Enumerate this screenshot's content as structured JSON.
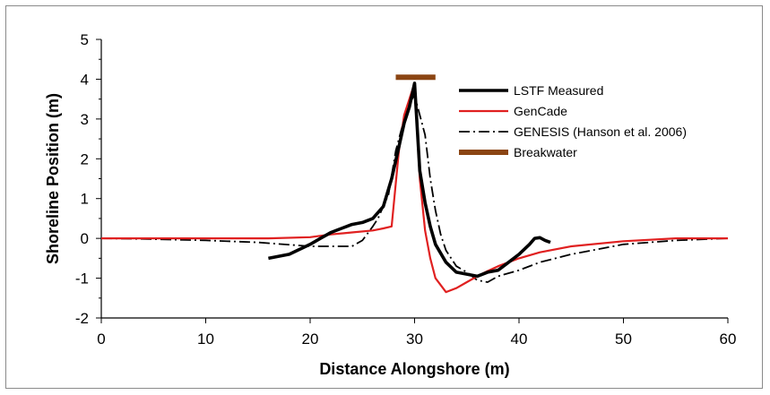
{
  "chart_data": {
    "type": "line",
    "xlabel": "Distance Alongshore (m)",
    "ylabel": "Shoreline Position (m)",
    "xlim": [
      0,
      60
    ],
    "ylim": [
      -2,
      5
    ],
    "xticks": [
      0,
      10,
      20,
      30,
      40,
      50,
      60
    ],
    "yticks": [
      -2,
      -1,
      0,
      1,
      2,
      3,
      4,
      5
    ],
    "grid": false,
    "legend_position": "top-right",
    "series": [
      {
        "name": "LSTF Measured",
        "color": "#000000",
        "style": "solid-thick",
        "x": [
          16,
          18,
          20,
          21,
          22,
          23,
          24,
          25,
          26,
          27,
          27.8,
          28.5,
          29,
          29.5,
          30,
          30.5,
          31,
          31.5,
          32,
          33,
          34,
          35,
          36,
          37,
          38,
          39,
          40,
          41,
          41.5,
          42,
          42.5,
          43
        ],
        "y": [
          -0.5,
          -0.4,
          -0.15,
          0,
          0.15,
          0.25,
          0.35,
          0.4,
          0.5,
          0.8,
          1.5,
          2.3,
          2.9,
          3.3,
          3.9,
          1.7,
          0.9,
          0.3,
          -0.15,
          -0.6,
          -0.85,
          -0.9,
          -0.95,
          -0.85,
          -0.8,
          -0.6,
          -0.4,
          -0.15,
          0,
          0.02,
          -0.05,
          -0.1
        ]
      },
      {
        "name": "GenCade",
        "color": "#e02020",
        "style": "solid",
        "x": [
          0,
          10,
          16,
          20,
          22,
          24,
          26,
          27,
          27.8,
          28.5,
          29,
          29.5,
          30,
          30.5,
          31,
          31.5,
          32,
          33,
          34,
          35,
          36,
          37,
          38,
          40,
          42,
          45,
          50,
          55,
          60
        ],
        "y": [
          0,
          0,
          0,
          0.03,
          0.1,
          0.15,
          0.2,
          0.25,
          0.3,
          2.2,
          3.1,
          3.5,
          3.9,
          1.5,
          0.2,
          -0.5,
          -1.0,
          -1.35,
          -1.25,
          -1.1,
          -0.95,
          -0.82,
          -0.7,
          -0.5,
          -0.35,
          -0.2,
          -0.07,
          0,
          0
        ]
      },
      {
        "name": "GENESIS (Hanson et al. 2006)",
        "color": "#000000",
        "style": "dash-dot",
        "x": [
          0,
          5,
          10,
          15,
          20,
          22,
          24,
          25,
          26,
          26.5,
          27.5,
          28.2,
          29,
          29.5,
          30,
          30.5,
          31,
          31.5,
          32,
          32.5,
          33,
          34,
          35,
          36,
          37,
          38,
          40,
          42,
          45,
          50,
          55,
          60
        ],
        "y": [
          0,
          -0.02,
          -0.05,
          -0.1,
          -0.2,
          -0.2,
          -0.2,
          -0.05,
          0.3,
          0.5,
          1.1,
          2.2,
          3.0,
          3.4,
          3.6,
          3.1,
          2.6,
          1.5,
          0.7,
          0.1,
          -0.3,
          -0.7,
          -0.85,
          -1.05,
          -1.1,
          -0.95,
          -0.8,
          -0.6,
          -0.4,
          -0.15,
          -0.05,
          0
        ]
      },
      {
        "name": "Breakwater",
        "color": "#8b4513",
        "style": "solid-thick",
        "x": [
          28.2,
          32
        ],
        "y": [
          4.05,
          4.05
        ]
      }
    ]
  }
}
